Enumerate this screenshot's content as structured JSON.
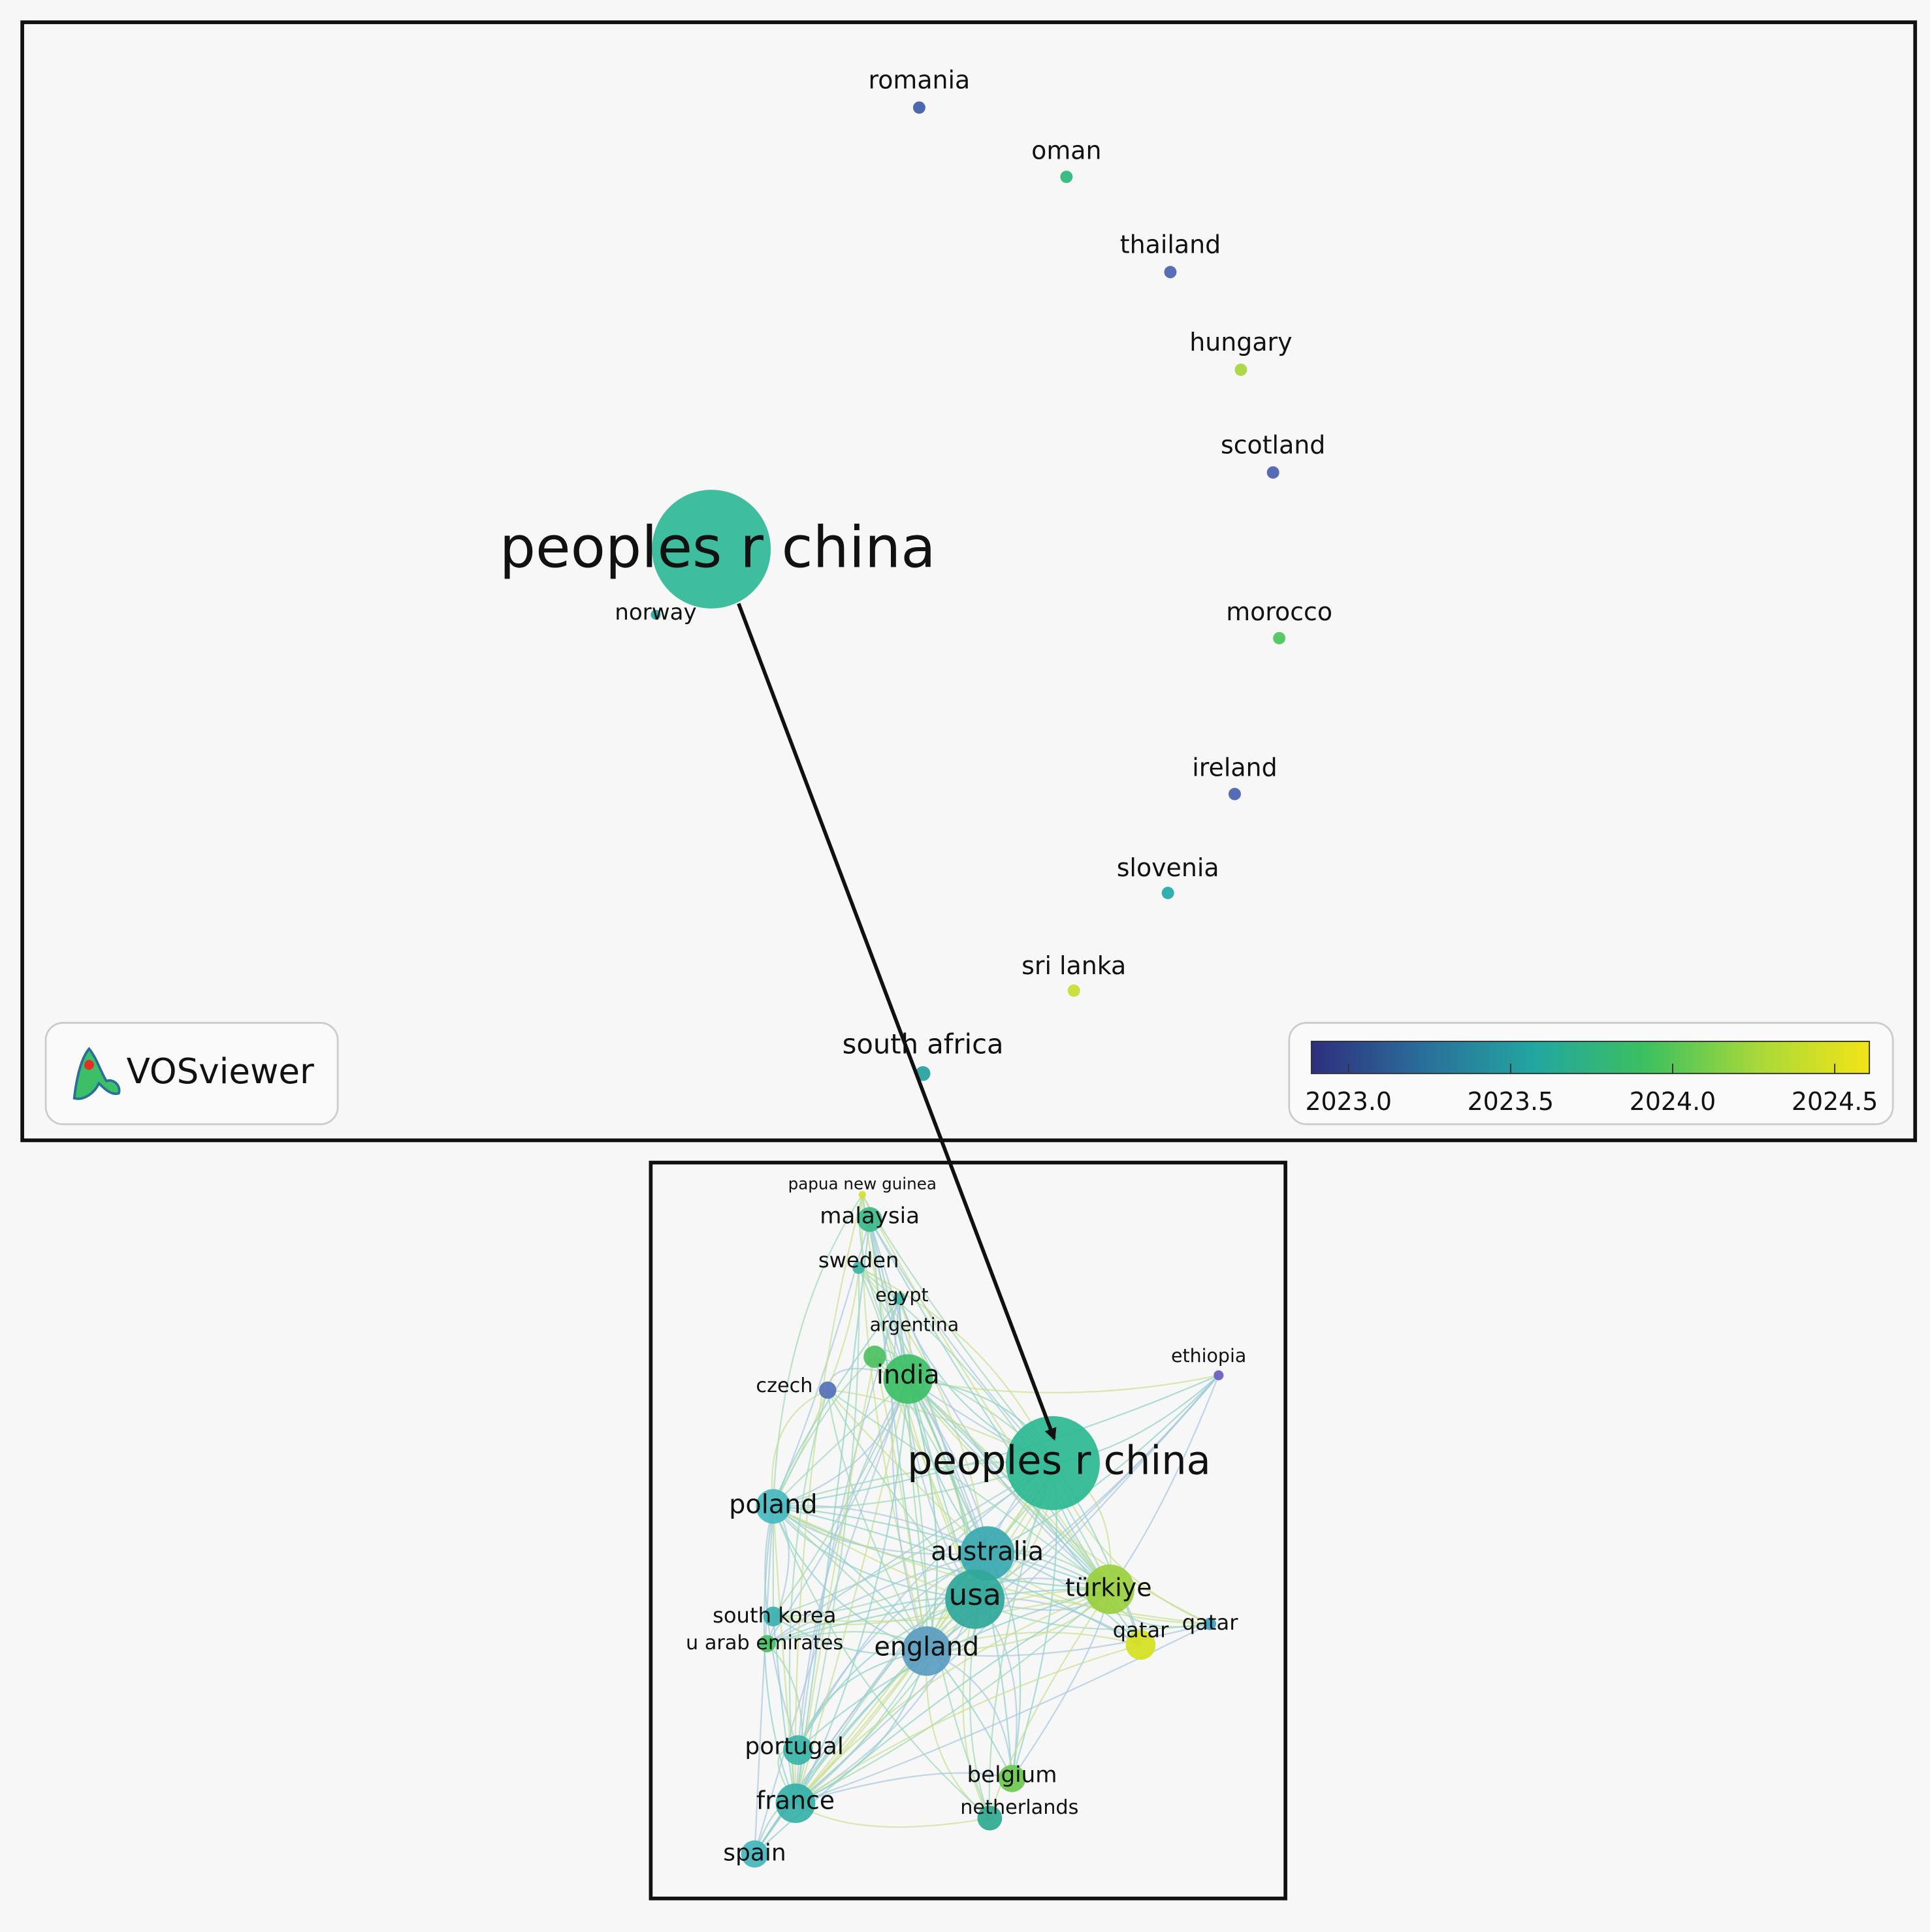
{
  "top_panel": {
    "nodes": [
      {
        "label": "romania",
        "color": "#3f5ba8"
      },
      {
        "label": "oman",
        "color": "#2cb77a"
      },
      {
        "label": "thailand",
        "color": "#4a63b0"
      },
      {
        "label": "hungary",
        "color": "#a5d63a"
      },
      {
        "label": "scotland",
        "color": "#4760ae"
      },
      {
        "label": "peoples r china",
        "color": "#2eb896"
      },
      {
        "label": "norway",
        "color": "#24a8a0"
      },
      {
        "label": "morocco",
        "color": "#47c55a"
      },
      {
        "label": "ireland",
        "color": "#4860ae"
      },
      {
        "label": "slovenia",
        "color": "#22a8a8"
      },
      {
        "label": "sri lanka",
        "color": "#c8dc30"
      },
      {
        "label": "south africa",
        "color": "#23a0a0"
      }
    ]
  },
  "logo": {
    "text": "VOSviewer"
  },
  "legend": {
    "ticks": [
      "2023.0",
      "2023.5",
      "2024.0",
      "2024.5"
    ],
    "colors": [
      "#2f2f7e",
      "#2a6e9a",
      "#22a6a0",
      "#3cc060",
      "#a8d83a",
      "#f2e418"
    ]
  },
  "bottom_panel": {
    "nodes": [
      {
        "label": "papua new guinea",
        "color": "#d8e030"
      },
      {
        "label": "malaysia",
        "color": "#3cb88a"
      },
      {
        "label": "sweden",
        "color": "#38b4a4"
      },
      {
        "label": "egypt",
        "color": "#3ab6a0"
      },
      {
        "label": "argentina",
        "color": "#4cc060"
      },
      {
        "label": "india",
        "color": "#3cbf66"
      },
      {
        "label": "czech",
        "color": "#5570b8"
      },
      {
        "label": "ethiopia",
        "color": "#6a5ac0"
      },
      {
        "label": "peoples r china",
        "color": "#2db893"
      },
      {
        "label": "poland",
        "color": "#46b8c0"
      },
      {
        "label": "australia",
        "color": "#3aa8b0"
      },
      {
        "label": "usa",
        "color": "#2fa79a"
      },
      {
        "label": "türkiye",
        "color": "#99cf3e"
      },
      {
        "label": "south korea",
        "color": "#3ab0b0"
      },
      {
        "label": "u arab emirates",
        "color": "#46c060"
      },
      {
        "label": "qatar",
        "color": "#3aa0c0"
      },
      {
        "label": "qatar",
        "color": "#d5e020"
      },
      {
        "label": "england",
        "color": "#5a9cc0"
      },
      {
        "label": "portugal",
        "color": "#3ab4a8"
      },
      {
        "label": "france",
        "color": "#36b0a8"
      },
      {
        "label": "belgium",
        "color": "#6cc850"
      },
      {
        "label": "netherlands",
        "color": "#2ea890"
      },
      {
        "label": "spain",
        "color": "#44b4bc"
      }
    ]
  }
}
